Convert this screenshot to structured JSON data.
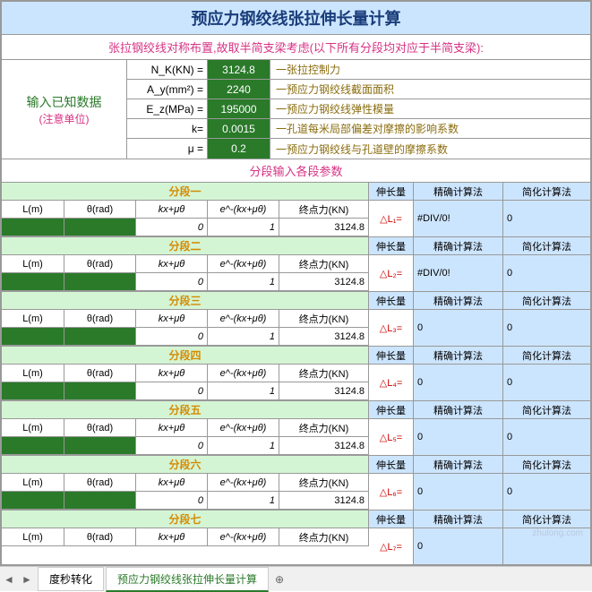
{
  "title": "预应力钢绞线张拉伸长量计算",
  "subtitle": "张拉钢绞线对称布置,故取半简支梁考虑(以下所有分段均对应于半简支梁):",
  "input_section": {
    "label_main": "输入已知数据",
    "label_note": "(注意单位)",
    "rows": [
      {
        "key": "N_K(KN) =",
        "val": "3124.8",
        "desc": "一张拉控制力"
      },
      {
        "key": "A_y(mm²) =",
        "val": "2240",
        "desc": "一预应力钢绞线截面面积"
      },
      {
        "key": "E_z(MPa) =",
        "val": "195000",
        "desc": "一预应力钢绞线弹性模量"
      },
      {
        "key": "k=",
        "val": "0.0015",
        "desc": "一孔道每米局部偏差对摩擦的影响系数"
      },
      {
        "key": "μ =",
        "val": "0.2",
        "desc": "一预应力钢绞线与孔道壁的摩擦系数"
      }
    ]
  },
  "section_header": "分段输入各段参数",
  "col_headers": {
    "L": "L(m)",
    "theta": "θ(rad)",
    "kx": "kx+μθ",
    "exp": "e^-(kx+μθ)",
    "end": "终点力(KN)",
    "elong": "伸长量",
    "precise": "精确计算法",
    "simple": "简化计算法"
  },
  "segments": [
    {
      "name": "分段一",
      "kx_val": "0",
      "exp_val": "1",
      "end_val": "3124.8",
      "delta": "△L₁=",
      "precise": "#DIV/0!",
      "simple": "0"
    },
    {
      "name": "分段二",
      "kx_val": "0",
      "exp_val": "1",
      "end_val": "3124.8",
      "delta": "△L₂=",
      "precise": "#DIV/0!",
      "simple": "0"
    },
    {
      "name": "分段三",
      "kx_val": "0",
      "exp_val": "1",
      "end_val": "3124.8",
      "delta": "△L₃=",
      "precise": "0",
      "simple": "0"
    },
    {
      "name": "分段四",
      "kx_val": "0",
      "exp_val": "1",
      "end_val": "3124.8",
      "delta": "△L₄=",
      "precise": "0",
      "simple": "0"
    },
    {
      "name": "分段五",
      "kx_val": "0",
      "exp_val": "1",
      "end_val": "3124.8",
      "delta": "△L₅=",
      "precise": "0",
      "simple": "0"
    },
    {
      "name": "分段六",
      "kx_val": "0",
      "exp_val": "1",
      "end_val": "3124.8",
      "delta": "△L₆=",
      "precise": "0",
      "simple": "0"
    },
    {
      "name": "分段七",
      "kx_val": "",
      "exp_val": "",
      "end_val": "",
      "delta": "△L₇=",
      "precise": "0",
      "simple": ""
    }
  ],
  "tabs": {
    "prev": "◄",
    "next": "►",
    "tab1": "度秒转化",
    "tab2": "预应力钢绞线张拉伸长量计算",
    "add": "⊕"
  },
  "watermark": "zhulong.com",
  "colors": {
    "header_bg": "#cce5ff",
    "title_color": "#1a3d7a",
    "magenta": "#d63384",
    "green_dark": "#2a7a2a",
    "green_light": "#d4f5d4",
    "olive": "#8a6d0f",
    "orange": "#d68a00",
    "red": "#c00"
  }
}
